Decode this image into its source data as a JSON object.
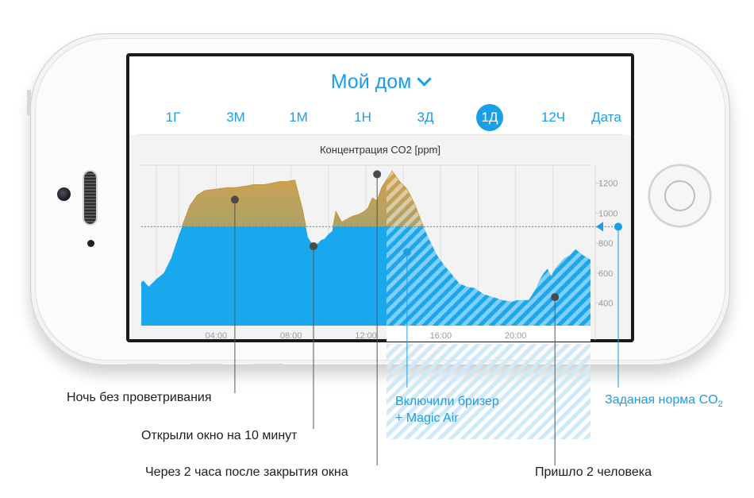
{
  "app": {
    "title": "Мой дом",
    "tabs": [
      {
        "label": "1Г",
        "active": false
      },
      {
        "label": "3М",
        "active": false
      },
      {
        "label": "1М",
        "active": false
      },
      {
        "label": "1Н",
        "active": false
      },
      {
        "label": "3Д",
        "active": false
      },
      {
        "label": "1Д",
        "active": true
      },
      {
        "label": "12Ч",
        "active": false
      },
      {
        "label": "Дата",
        "active": false
      }
    ]
  },
  "colors": {
    "accent": "#1a9ee7",
    "area_fill": "#19a7ee",
    "area_over_norm_top": "#d1a14d",
    "area_over_norm_bottom": "#69a59b"
  },
  "chart_data": {
    "type": "area",
    "title": "Концентрация СО2 [ppm]",
    "x_ticks": [
      "04:00",
      "08:00",
      "12:00",
      "16:00",
      "20:00"
    ],
    "y_ticks": [
      "1200",
      "1000",
      "800",
      "600",
      "400"
    ],
    "ylim": [
      250,
      1320
    ],
    "xlim": [
      0,
      24
    ],
    "norm_ppm": 910,
    "grid": true,
    "series": [
      {
        "x": [
          0,
          0.1,
          0.4,
          0.8,
          1.2,
          1.6,
          2,
          2.6,
          3,
          3.4,
          4,
          4.6,
          5,
          5.6,
          6,
          6.6,
          7,
          7.4,
          7.8,
          8.2,
          8.6,
          8.9,
          9.2,
          9.45,
          9.6,
          9.8,
          10,
          10.2,
          10.4,
          10.7,
          11,
          11.3,
          11.6,
          11.9,
          12.1,
          12.35,
          12.6,
          12.85,
          13.1,
          13.4,
          13.8,
          14.2,
          14.6,
          15,
          15.4,
          15.8,
          16.2,
          16.6,
          17,
          17.4,
          17.8,
          18.3,
          18.8,
          19.3,
          19.8,
          20.1,
          20.4,
          20.7,
          20.9,
          21.1,
          21.3,
          21.5,
          21.7,
          21.9,
          22.1,
          22.3,
          22.6,
          22.9,
          23.2,
          23.6,
          24
        ],
        "y": [
          540,
          550,
          510,
          560,
          600,
          700,
          850,
          1050,
          1120,
          1150,
          1160,
          1170,
          1170,
          1180,
          1190,
          1190,
          1200,
          1210,
          1210,
          1220,
          1030,
          840,
          780,
          800,
          820,
          830,
          860,
          880,
          1010,
          940,
          960,
          980,
          990,
          1010,
          1030,
          1100,
          1080,
          1170,
          1220,
          1280,
          1210,
          1160,
          1060,
          930,
          820,
          720,
          650,
          590,
          530,
          510,
          500,
          460,
          440,
          420,
          410,
          420,
          420,
          420,
          460,
          500,
          560,
          600,
          630,
          580,
          630,
          660,
          700,
          720,
          760,
          720,
          690
        ]
      }
    ]
  },
  "annotations": {
    "night": "Ночь без проветривания",
    "window_open": "Открыли окно на 10 минут",
    "after_close": "Через 2 часа после закрытия окна",
    "breezer": "Включили бризер",
    "magic_air": "+ Magic Air",
    "norm": "Заданая норма CO",
    "norm_sub": "2",
    "people": "Пришло 2 человека"
  }
}
